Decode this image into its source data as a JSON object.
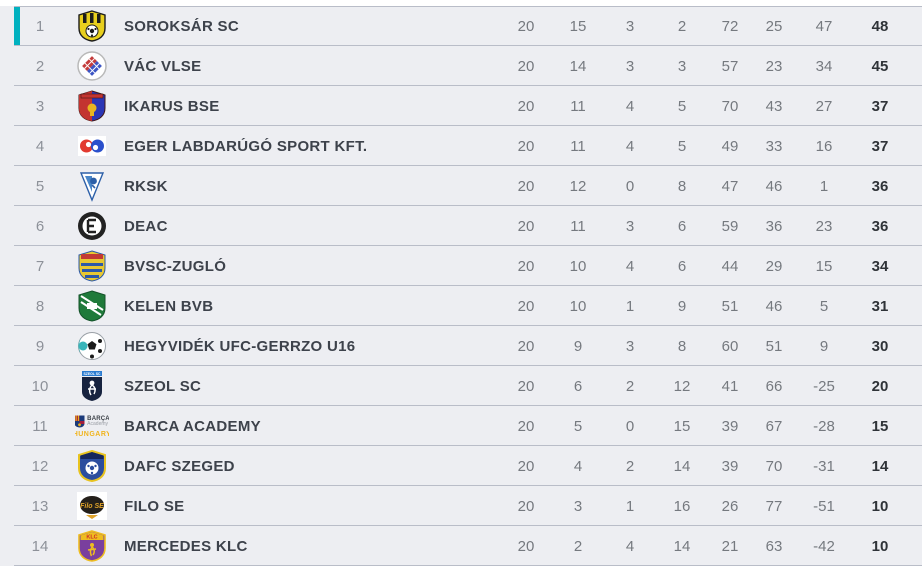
{
  "colors": {
    "accent": "#00b1bf",
    "row_bg": "#edeef2",
    "separator": "#b9bdc8",
    "position_text": "#8d9199",
    "team_text": "#3d424b",
    "stat_text": "#75797f",
    "points_text": "#2f3338"
  },
  "table": {
    "rows": [
      {
        "pos": "1",
        "team": "SOROKSÁR SC",
        "highlight": true,
        "logo": {
          "kind": "crest-ball",
          "name": "soroksar-sc-crest",
          "colors": [
            "#e8cf1d",
            "#1c1c1c",
            "#ffffff"
          ]
        },
        "stats": [
          "20",
          "15",
          "3",
          "2",
          "72",
          "25",
          "47",
          "48"
        ]
      },
      {
        "pos": "2",
        "team": "VÁC VLSE",
        "logo": {
          "kind": "round-check",
          "name": "vac-vlse-crest",
          "colors": [
            "#ffffff",
            "#c43c3c",
            "#3c55c4",
            "#b9b9b9"
          ]
        },
        "stats": [
          "20",
          "14",
          "3",
          "3",
          "57",
          "23",
          "34",
          "45"
        ]
      },
      {
        "pos": "3",
        "team": "IKARUS BSE",
        "logo": {
          "kind": "split-shield",
          "name": "ikarus-bse-crest",
          "colors": [
            "#c33430",
            "#2b36b5",
            "#e8b520"
          ]
        },
        "stats": [
          "20",
          "11",
          "4",
          "5",
          "70",
          "43",
          "27",
          "37"
        ]
      },
      {
        "pos": "4",
        "team": "EGER LABDARÚGÓ SPORT KFT.",
        "logo": {
          "kind": "double-swirl",
          "name": "eger-crest",
          "colors": [
            "#ffffff",
            "#e23a30",
            "#2b50cc"
          ]
        },
        "stats": [
          "20",
          "11",
          "4",
          "5",
          "49",
          "33",
          "16",
          "37"
        ]
      },
      {
        "pos": "5",
        "team": "RKSK",
        "logo": {
          "kind": "pennant",
          "name": "rksk-crest",
          "colors": [
            "#ffffff",
            "#4a86c8",
            "#2c5fa8"
          ]
        },
        "stats": [
          "20",
          "12",
          "0",
          "8",
          "47",
          "46",
          "1",
          "36"
        ]
      },
      {
        "pos": "6",
        "team": "DEAC",
        "logo": {
          "kind": "wreath",
          "name": "deac-crest",
          "colors": [
            "#222222",
            "#ffffff"
          ]
        },
        "stats": [
          "20",
          "11",
          "3",
          "6",
          "59",
          "36",
          "23",
          "36"
        ]
      },
      {
        "pos": "7",
        "team": "BVSC-ZUGLÓ",
        "logo": {
          "kind": "striped-shield",
          "name": "bvsc-zuglo-crest",
          "colors": [
            "#e7c832",
            "#2b59a8",
            "#c23a34"
          ],
          "label": "BVSC"
        },
        "stats": [
          "20",
          "10",
          "4",
          "6",
          "44",
          "29",
          "15",
          "34"
        ]
      },
      {
        "pos": "8",
        "team": "KELEN BVB",
        "logo": {
          "kind": "green-shield",
          "name": "kelen-crest",
          "colors": [
            "#1f7a3a",
            "#ffffff"
          ]
        },
        "stats": [
          "20",
          "10",
          "1",
          "9",
          "51",
          "46",
          "5",
          "31"
        ]
      },
      {
        "pos": "9",
        "team": "HEGYVIDÉK UFC-GERRZO U16",
        "logo": {
          "kind": "ball",
          "name": "hegyvidek-ufc-crest",
          "colors": [
            "#ffffff",
            "#1b1b1b",
            "#39b5ba"
          ]
        },
        "stats": [
          "20",
          "9",
          "3",
          "8",
          "60",
          "51",
          "9",
          "30"
        ]
      },
      {
        "pos": "10",
        "team": "SZEOL SC",
        "logo": {
          "kind": "figure-shield",
          "name": "szeol-sc-crest",
          "colors": [
            "#17233f",
            "#ffffff",
            "#2a7bd0"
          ],
          "label": "SZEOL SC"
        },
        "stats": [
          "20",
          "6",
          "2",
          "12",
          "41",
          "66",
          "-25",
          "20"
        ]
      },
      {
        "pos": "11",
        "team": "BARCA ACADEMY",
        "logo": {
          "kind": "barca",
          "name": "barca-academy-crest",
          "colors": [
            "#a31e3c",
            "#1b3a7a",
            "#e8b11c"
          ],
          "brand": "BARÇA",
          "sub": "Academy",
          "caption": "HUNGARY"
        },
        "stats": [
          "20",
          "5",
          "0",
          "15",
          "39",
          "67",
          "-28",
          "15"
        ]
      },
      {
        "pos": "12",
        "team": "DAFC SZEGED",
        "logo": {
          "kind": "ball-shield",
          "name": "dafc-szeged-crest",
          "colors": [
            "#2b4d9e",
            "#e8c31f",
            "#ffffff",
            "#15265c"
          ]
        },
        "stats": [
          "20",
          "4",
          "2",
          "14",
          "39",
          "70",
          "-31",
          "14"
        ]
      },
      {
        "pos": "13",
        "team": "FILO SE",
        "logo": {
          "kind": "plate",
          "name": "filo-se-crest",
          "colors": [
            "#ffffff",
            "#241f1a",
            "#e0a32a"
          ],
          "label": "Filo SE"
        },
        "stats": [
          "20",
          "3",
          "1",
          "16",
          "26",
          "77",
          "-51",
          "10"
        ]
      },
      {
        "pos": "14",
        "team": "MERCEDES KLC",
        "logo": {
          "kind": "klc-shield",
          "name": "mercedes-klc-crest",
          "colors": [
            "#7a3f9e",
            "#eebd20",
            "#cf2a2a"
          ],
          "label": "KLC"
        },
        "stats": [
          "20",
          "2",
          "4",
          "14",
          "21",
          "63",
          "-42",
          "10"
        ]
      }
    ]
  }
}
